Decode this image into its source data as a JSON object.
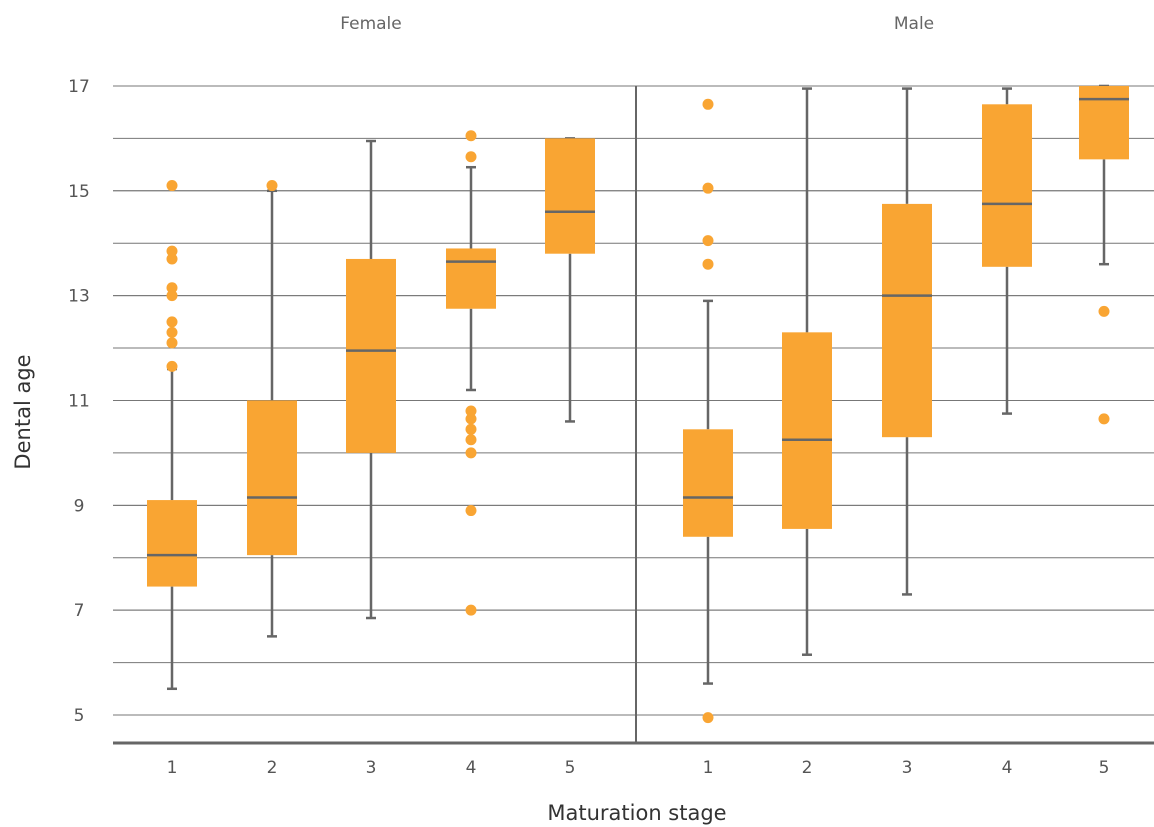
{
  "chart_data": {
    "type": "box",
    "xlabel": "Maturation stage",
    "ylabel": "Dental age",
    "ylim": [
      4.45,
      17
    ],
    "yticks": [
      5,
      7,
      9,
      11,
      13,
      15,
      17
    ],
    "grid": true,
    "box_color": "#F9A533",
    "line_color": "#666666",
    "panels": [
      {
        "name": "Female",
        "categories": [
          "1",
          "2",
          "3",
          "4",
          "5"
        ],
        "boxes": [
          {
            "whisker_low": 5.5,
            "q1": 7.45,
            "median": 8.05,
            "q3": 9.1,
            "whisker_high": 11.6,
            "outliers": [
              11.65,
              12.1,
              12.3,
              12.5,
              13.0,
              13.15,
              13.7,
              13.85,
              15.1
            ]
          },
          {
            "whisker_low": 6.5,
            "q1": 8.05,
            "median": 9.15,
            "q3": 11.0,
            "whisker_high": 15.0,
            "outliers": [
              15.1
            ]
          },
          {
            "whisker_low": 6.85,
            "q1": 10.0,
            "median": 11.95,
            "q3": 13.7,
            "whisker_high": 15.95,
            "outliers": []
          },
          {
            "whisker_low": 11.2,
            "q1": 12.75,
            "median": 13.65,
            "q3": 13.9,
            "whisker_high": 15.45,
            "outliers": [
              7.0,
              8.9,
              10.0,
              10.25,
              10.45,
              10.65,
              10.8,
              15.65,
              16.05
            ]
          },
          {
            "whisker_low": 10.6,
            "q1": 13.8,
            "median": 14.6,
            "q3": 16.0,
            "whisker_high": 16.0,
            "outliers": []
          }
        ]
      },
      {
        "name": "Male",
        "categories": [
          "1",
          "2",
          "3",
          "4",
          "5"
        ],
        "boxes": [
          {
            "whisker_low": 5.6,
            "q1": 8.4,
            "median": 9.15,
            "q3": 10.45,
            "whisker_high": 12.9,
            "outliers": [
              4.95,
              13.6,
              14.05,
              15.05,
              16.65
            ]
          },
          {
            "whisker_low": 6.15,
            "q1": 8.55,
            "median": 10.25,
            "q3": 12.3,
            "whisker_high": 16.95,
            "outliers": []
          },
          {
            "whisker_low": 7.3,
            "q1": 10.3,
            "median": 13.0,
            "q3": 14.75,
            "whisker_high": 16.95,
            "outliers": []
          },
          {
            "whisker_low": 10.75,
            "q1": 13.55,
            "median": 14.75,
            "q3": 16.65,
            "whisker_high": 16.95,
            "outliers": []
          },
          {
            "whisker_low": 13.6,
            "q1": 15.6,
            "median": 16.75,
            "q3": 17.0,
            "whisker_high": 17.0,
            "outliers": [
              10.65,
              12.7
            ]
          }
        ]
      }
    ]
  }
}
